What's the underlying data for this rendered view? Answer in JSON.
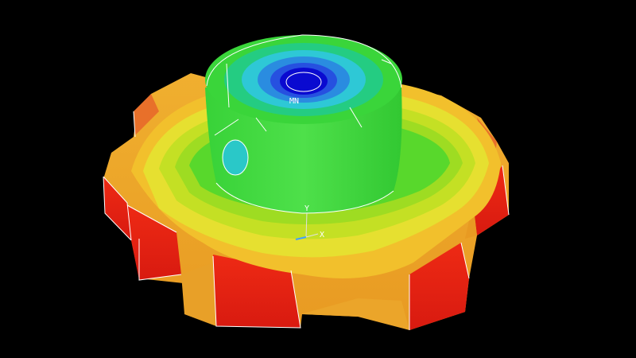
{
  "viewport": {
    "background": "#000000",
    "model": "gear-with-hub",
    "contour_colors": [
      "#ee1111",
      "#f0a020",
      "#e6e030",
      "#b8e020",
      "#33d233",
      "#22cc88",
      "#33c8d8",
      "#3355dd",
      "#0000c8"
    ],
    "edge_color": "#ffffff"
  },
  "labels": {
    "min_marker": "MN",
    "axis_y": "Y",
    "axis_x": "X"
  }
}
